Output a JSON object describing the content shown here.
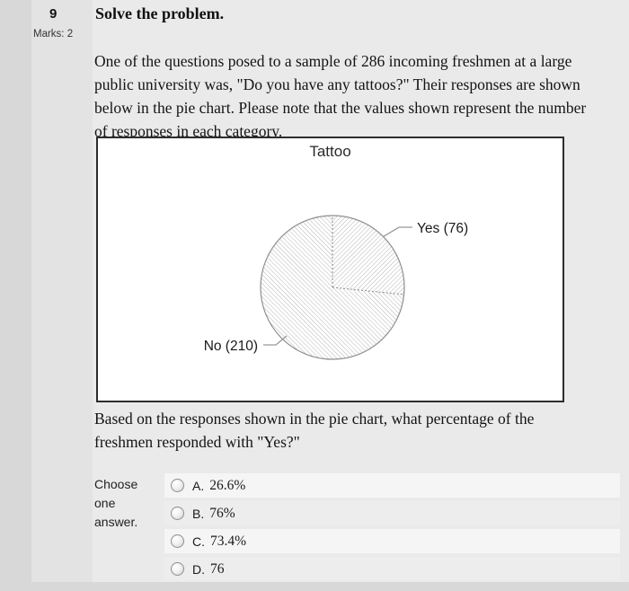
{
  "question": {
    "number": "9",
    "prompt": "Solve the problem.",
    "marks": "Marks: 2",
    "text1": "One of the questions posed to a sample of 286 incoming freshmen at a large public university was, \"Do you have any tattoos?\" Their responses are shown below in the pie chart. Please note that the values shown represent the number of responses in each category.",
    "text2": "Based on the responses shown in the pie chart, what percentage of the freshmen responded with \"Yes?\"",
    "choose_label": "Choose one answer."
  },
  "options": [
    {
      "letter": "A.",
      "text": "26.6%"
    },
    {
      "letter": "B.",
      "text": "76%"
    },
    {
      "letter": "C.",
      "text": "73.4%"
    },
    {
      "letter": "D.",
      "text": "76"
    }
  ],
  "chart_data": {
    "type": "pie",
    "title": "Tattoo",
    "categories": [
      "Yes",
      "No"
    ],
    "values": [
      76,
      210
    ],
    "total": 286,
    "labels": [
      "Yes (76)",
      "No (210)"
    ],
    "style": "gray diagonal hatch fill, labels with leader lines, slice start at 12 o'clock clockwise"
  },
  "colors": {
    "page_bg": "#d8d8d8",
    "block_bg": "#e3e3e3",
    "content_bg": "#eaeaea",
    "row_odd": "#f5f5f5",
    "row_even": "#ededed",
    "chart_border": "#2d2d2d",
    "hatch_line": "#b4b4b4",
    "pie_outline": "#8f8f8f",
    "text": "#141414"
  }
}
